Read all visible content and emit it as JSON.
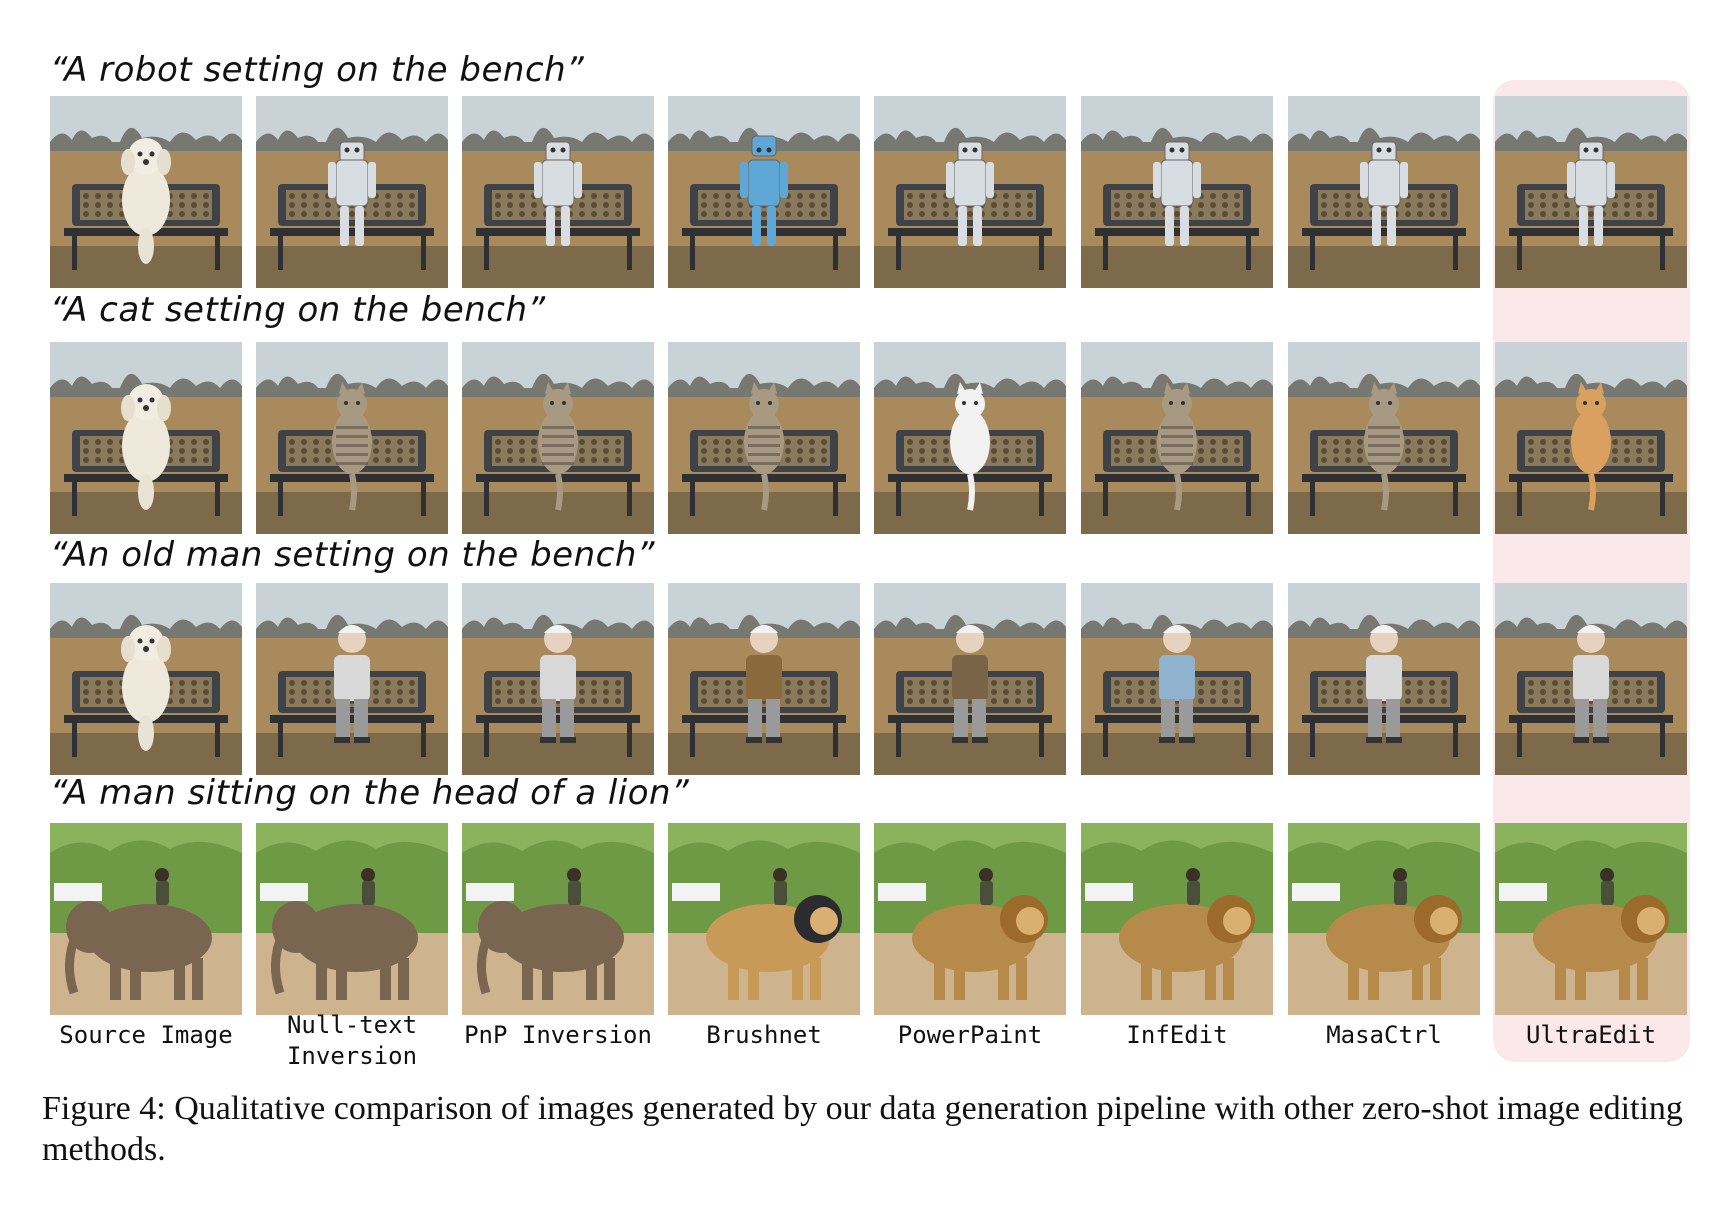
{
  "prompts": [
    "“A robot setting on the bench”",
    "“A cat setting on the bench”",
    "“An old man setting on the bench”",
    "“A man sitting on the head of a lion”"
  ],
  "methods": [
    "Source Image",
    "Null-text\nInversion",
    "PnP Inversion",
    "Brushnet",
    "PowerPaint",
    "InfEdit",
    "MasaCtrl",
    "UltraEdit"
  ],
  "highlighted_method": "UltraEdit",
  "caption": "Figure 4: Qualitative comparison of images generated by our data generation pipeline with other zero-shot image editing methods.",
  "colors": {
    "highlight": "#fae8ea",
    "field": "#a88a5c",
    "sky": "#c9d2d6",
    "bench": "#3f4247",
    "grass": "#6f9a45",
    "sand": "#cdb48f"
  },
  "rows": [
    {
      "subject": "robot",
      "scene": "bench"
    },
    {
      "subject": "cat",
      "scene": "bench"
    },
    {
      "subject": "old-man",
      "scene": "bench"
    },
    {
      "subject": "elephant-lion",
      "scene": "field"
    }
  ]
}
